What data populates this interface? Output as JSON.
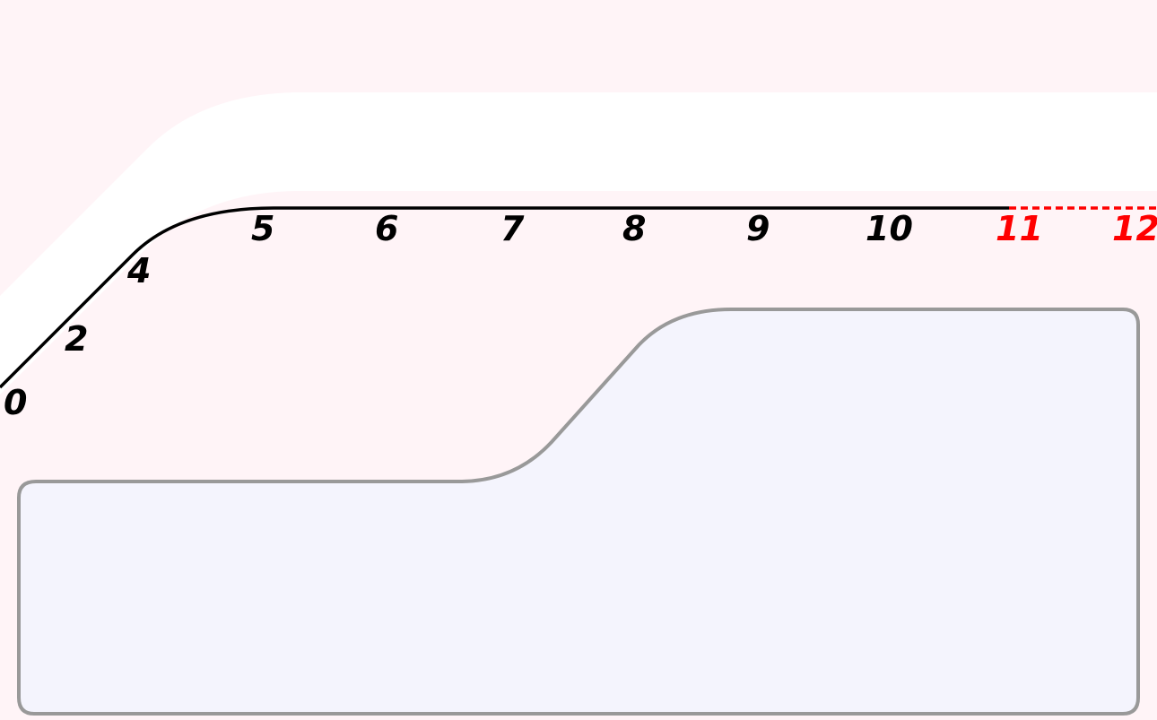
{
  "gauge": {
    "ticks": [
      {
        "label": "0",
        "zone": "normal"
      },
      {
        "label": "2",
        "zone": "normal"
      },
      {
        "label": "4",
        "zone": "normal"
      },
      {
        "label": "5",
        "zone": "normal"
      },
      {
        "label": "6",
        "zone": "normal"
      },
      {
        "label": "7",
        "zone": "normal"
      },
      {
        "label": "8",
        "zone": "normal"
      },
      {
        "label": "9",
        "zone": "normal"
      },
      {
        "label": "10",
        "zone": "normal"
      },
      {
        "label": "11",
        "zone": "redline"
      },
      {
        "label": "12",
        "zone": "redline"
      }
    ]
  },
  "colors": {
    "background": "#fff4f7",
    "band": "#ffffff",
    "scale_line": "#000000",
    "redline": "#ff0000",
    "panel_fill": "#f4f4fd",
    "panel_border": "#999999"
  }
}
